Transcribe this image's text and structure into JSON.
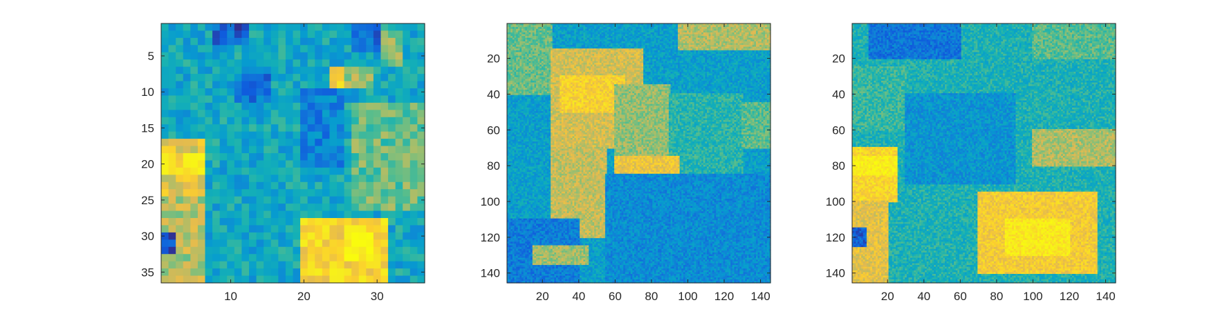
{
  "chart_data": [
    {
      "type": "heatmap",
      "grid_size": [
        36,
        36
      ],
      "xlim": [
        0.5,
        36.5
      ],
      "ylim": [
        0.5,
        36.5
      ],
      "y_reversed": true,
      "xticks": [
        "10",
        "20",
        "30"
      ],
      "xtick_values": [
        10,
        20,
        30
      ],
      "yticks": [
        "5",
        "10",
        "15",
        "20",
        "25",
        "30",
        "35"
      ],
      "ytick_values": [
        5,
        10,
        15,
        20,
        25,
        30,
        35
      ],
      "colormap": "parula",
      "regions": [
        {
          "rows": [
            1,
            3
          ],
          "cols": [
            8,
            12
          ],
          "value": 0.12
        },
        {
          "rows": [
            1,
            4
          ],
          "cols": [
            27,
            30
          ],
          "value": 0.15
        },
        {
          "rows": [
            2,
            6
          ],
          "cols": [
            31,
            33
          ],
          "value": 0.55
        },
        {
          "rows": [
            7,
            9
          ],
          "cols": [
            25,
            29
          ],
          "value": 0.6
        },
        {
          "rows": [
            7,
            10
          ],
          "cols": [
            24,
            25
          ],
          "value": 0.82
        },
        {
          "rows": [
            8,
            11
          ],
          "cols": [
            11,
            15
          ],
          "value": 0.18
        },
        {
          "rows": [
            10,
            20
          ],
          "cols": [
            20,
            25
          ],
          "value": 0.22
        },
        {
          "rows": [
            12,
            26
          ],
          "cols": [
            27,
            36
          ],
          "value": 0.52
        },
        {
          "rows": [
            17,
            24
          ],
          "cols": [
            1,
            6
          ],
          "value": 0.72
        },
        {
          "rows": [
            19,
            21
          ],
          "cols": [
            1,
            6
          ],
          "value": 0.86
        },
        {
          "rows": [
            25,
            36
          ],
          "cols": [
            1,
            6
          ],
          "value": 0.62
        },
        {
          "rows": [
            28,
            36
          ],
          "cols": [
            20,
            31
          ],
          "value": 0.82
        },
        {
          "rows": [
            30,
            33
          ],
          "cols": [
            26,
            29
          ],
          "value": 0.97
        },
        {
          "rows": [
            30,
            32
          ],
          "cols": [
            1,
            2
          ],
          "value": 0.12
        }
      ],
      "base_value": 0.35
    },
    {
      "type": "heatmap",
      "grid_size": [
        145,
        145
      ],
      "xlim": [
        0.5,
        145.5
      ],
      "ylim": [
        0.5,
        145.5
      ],
      "y_reversed": true,
      "xticks": [
        "20",
        "40",
        "60",
        "80",
        "100",
        "120",
        "140"
      ],
      "xtick_values": [
        20,
        40,
        60,
        80,
        100,
        120,
        140
      ],
      "yticks": [
        "20",
        "40",
        "60",
        "80",
        "100",
        "120",
        "140"
      ],
      "ytick_values": [
        20,
        40,
        60,
        80,
        100,
        120,
        140
      ],
      "colormap": "parula",
      "regions": [
        {
          "rows": [
            1,
            40
          ],
          "cols": [
            1,
            25
          ],
          "value": 0.52
        },
        {
          "rows": [
            1,
            15
          ],
          "cols": [
            95,
            145
          ],
          "value": 0.62
        },
        {
          "rows": [
            15,
            70
          ],
          "cols": [
            25,
            75
          ],
          "value": 0.68
        },
        {
          "rows": [
            30,
            50
          ],
          "cols": [
            30,
            65
          ],
          "value": 0.8
        },
        {
          "rows": [
            35,
            90
          ],
          "cols": [
            60,
            90
          ],
          "value": 0.58
        },
        {
          "rows": [
            40,
            90
          ],
          "cols": [
            90,
            130
          ],
          "value": 0.42
        },
        {
          "rows": [
            45,
            70
          ],
          "cols": [
            130,
            145
          ],
          "value": 0.5
        },
        {
          "rows": [
            70,
            120
          ],
          "cols": [
            25,
            55
          ],
          "value": 0.65
        },
        {
          "rows": [
            75,
            85
          ],
          "cols": [
            60,
            95
          ],
          "value": 0.75
        },
        {
          "rows": [
            85,
            145
          ],
          "cols": [
            55,
            145
          ],
          "value": 0.25
        },
        {
          "rows": [
            110,
            145
          ],
          "cols": [
            1,
            40
          ],
          "value": 0.2
        },
        {
          "rows": [
            125,
            135
          ],
          "cols": [
            15,
            45
          ],
          "value": 0.6
        }
      ],
      "base_value": 0.32
    },
    {
      "type": "heatmap",
      "grid_size": [
        145,
        145
      ],
      "xlim": [
        0.5,
        145.5
      ],
      "ylim": [
        0.5,
        145.5
      ],
      "y_reversed": true,
      "xticks": [
        "20",
        "40",
        "60",
        "80",
        "100",
        "120",
        "140"
      ],
      "xtick_values": [
        20,
        40,
        60,
        80,
        100,
        120,
        140
      ],
      "yticks": [
        "20",
        "40",
        "60",
        "80",
        "100",
        "120",
        "140"
      ],
      "ytick_values": [
        20,
        40,
        60,
        80,
        100,
        120,
        140
      ],
      "colormap": "parula",
      "regions": [
        {
          "rows": [
            1,
            20
          ],
          "cols": [
            10,
            60
          ],
          "value": 0.18
        },
        {
          "rows": [
            1,
            20
          ],
          "cols": [
            100,
            145
          ],
          "value": 0.5
        },
        {
          "rows": [
            25,
            60
          ],
          "cols": [
            1,
            30
          ],
          "value": 0.45
        },
        {
          "rows": [
            60,
            80
          ],
          "cols": [
            100,
            145
          ],
          "value": 0.62
        },
        {
          "rows": [
            70,
            100
          ],
          "cols": [
            1,
            25
          ],
          "value": 0.82
        },
        {
          "rows": [
            75,
            85
          ],
          "cols": [
            1,
            25
          ],
          "value": 0.92
        },
        {
          "rows": [
            100,
            145
          ],
          "cols": [
            1,
            20
          ],
          "value": 0.72
        },
        {
          "rows": [
            95,
            140
          ],
          "cols": [
            70,
            135
          ],
          "value": 0.78
        },
        {
          "rows": [
            110,
            130
          ],
          "cols": [
            85,
            120
          ],
          "value": 0.9
        },
        {
          "rows": [
            115,
            125
          ],
          "cols": [
            1,
            8
          ],
          "value": 0.12
        },
        {
          "rows": [
            40,
            90
          ],
          "cols": [
            30,
            90
          ],
          "value": 0.28
        }
      ],
      "base_value": 0.4
    }
  ]
}
